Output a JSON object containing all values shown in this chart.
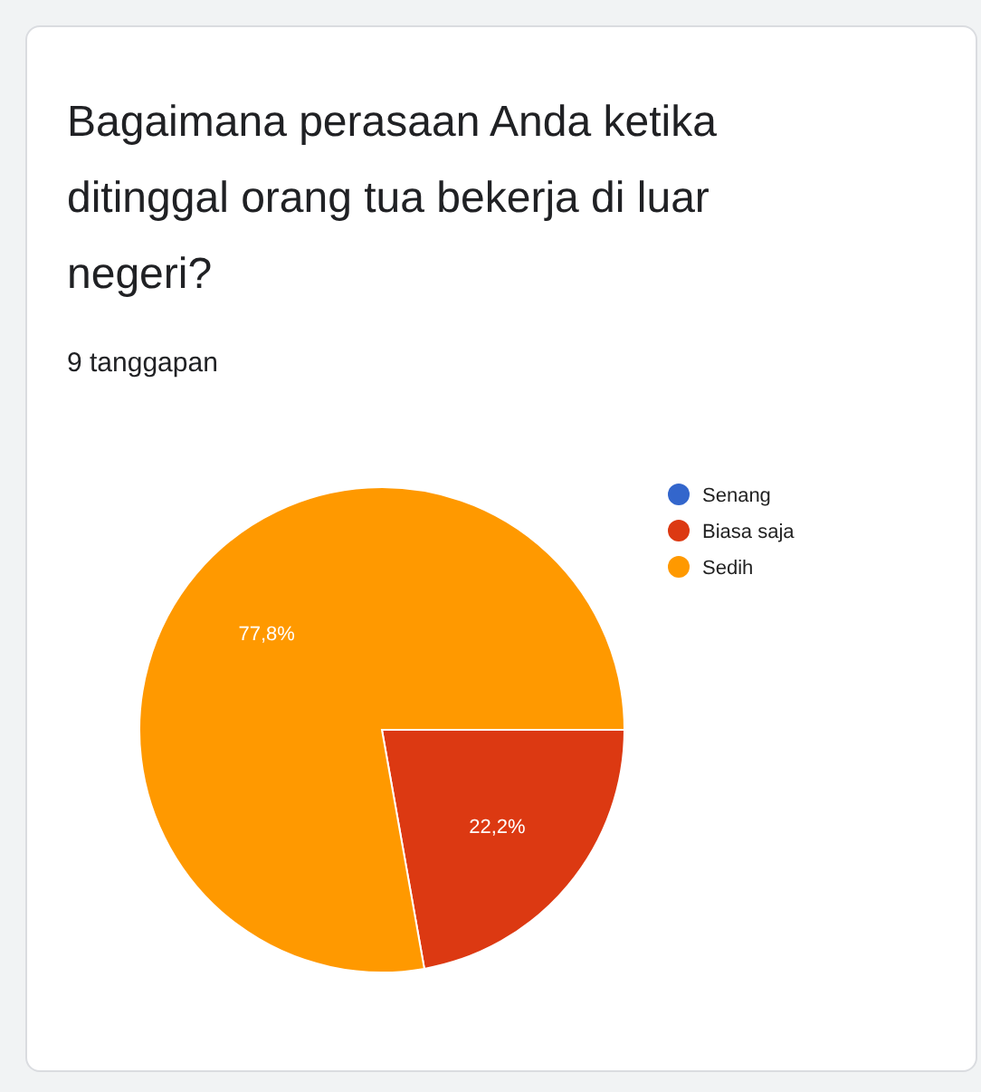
{
  "chart_data": {
    "type": "pie",
    "title": "Bagaimana perasaan Anda ketika ditinggal orang tua bekerja di luar negeri?",
    "subtitle": "9 tanggapan",
    "categories": [
      "Senang",
      "Biasa saja",
      "Sedih"
    ],
    "values": [
      0,
      22.2,
      77.8
    ],
    "colors": [
      "#3366cc",
      "#dc3912",
      "#ff9900"
    ],
    "value_labels": [
      null,
      "22,2%",
      "77,8%"
    ],
    "legend": "right"
  }
}
